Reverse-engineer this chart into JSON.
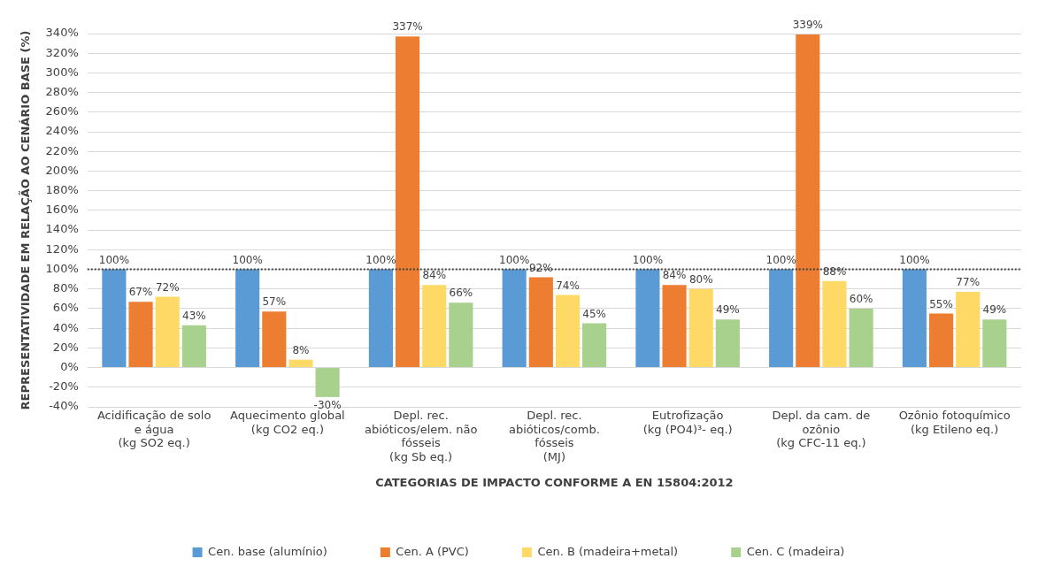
{
  "chart_data": {
    "type": "bar",
    "xlabel": "CATEGORIAS DE IMPACTO CONFORME A EN 15804:2012",
    "ylabel": "REPRESENTATIVIDADE EM RELAÇÃO AO CENÁRIO BASE (%)",
    "categories": [
      "Acidificação de solo\ne água\n(kg SO2 eq.)",
      "Aquecimento global\n(kg CO2 eq.)",
      "Depl. rec.\nabióticos/elem. não\nfósseis\n(kg Sb eq.)",
      "Depl. rec.\nabióticos/comb.\nfósseis\n(MJ)",
      "Eutrofização\n(kg (PO4)³- eq.)",
      "Depl. da cam. de\nozônio\n(kg CFC-11 eq.)",
      "Ozônio fotoquímico\n(kg Etileno eq.)"
    ],
    "series": [
      {
        "name": "Cen. base (alumínio)",
        "color": "#5b9bd5",
        "values": [
          100,
          100,
          100,
          100,
          100,
          100,
          100
        ],
        "value_labels": [
          "100%",
          "100%",
          "100%",
          "100%",
          "100%",
          "100%",
          "100%"
        ]
      },
      {
        "name": "Cen. A (PVC)",
        "color": "#ed7d31",
        "values": [
          67,
          57,
          337,
          92,
          84,
          339,
          55
        ],
        "value_labels": [
          "67%",
          "57%",
          "337%",
          "92%",
          "84%",
          "339%",
          "55%"
        ]
      },
      {
        "name": "Cen. B (madeira+metal)",
        "color": "#ffd966",
        "values": [
          72,
          8,
          84,
          74,
          80,
          88,
          77
        ],
        "value_labels": [
          "72%",
          "8%",
          "84%",
          "74%",
          "80%",
          "88%",
          "77%"
        ]
      },
      {
        "name": "Cen. C (madeira)",
        "color": "#a9d18e",
        "values": [
          43,
          -30,
          66,
          45,
          49,
          60,
          49
        ],
        "value_labels": [
          "43%",
          "-30%",
          "66%",
          "45%",
          "49%",
          "60%",
          "49%"
        ]
      }
    ],
    "ylim": [
      -40,
      340
    ],
    "yticks": [
      {
        "value": -40,
        "label": "-40%"
      },
      {
        "value": -20,
        "label": "-20%"
      },
      {
        "value": 0,
        "label": "0%"
      },
      {
        "value": 20,
        "label": "20%"
      },
      {
        "value": 40,
        "label": "40%"
      },
      {
        "value": 60,
        "label": "60%"
      },
      {
        "value": 80,
        "label": "80%"
      },
      {
        "value": 100,
        "label": "100%"
      },
      {
        "value": 120,
        "label": "120%"
      },
      {
        "value": 140,
        "label": "140%"
      },
      {
        "value": 160,
        "label": "160%"
      },
      {
        "value": 180,
        "label": "180%"
      },
      {
        "value": 200,
        "label": "200%"
      },
      {
        "value": 220,
        "label": "220%"
      },
      {
        "value": 240,
        "label": "240%"
      },
      {
        "value": 260,
        "label": "260%"
      },
      {
        "value": 280,
        "label": "280%"
      },
      {
        "value": 300,
        "label": "300%"
      },
      {
        "value": 320,
        "label": "320%"
      },
      {
        "value": 340,
        "label": "340%"
      }
    ],
    "ref_lines": [
      {
        "axis": "y",
        "value": 100,
        "color": "#404040",
        "line_style": "dotted"
      }
    ],
    "grid": "y",
    "legend": "bottom"
  }
}
